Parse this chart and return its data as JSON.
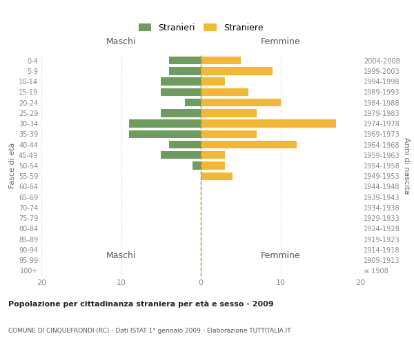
{
  "age_groups": [
    "100+",
    "95-99",
    "90-94",
    "85-89",
    "80-84",
    "75-79",
    "70-74",
    "65-69",
    "60-64",
    "55-59",
    "50-54",
    "45-49",
    "40-44",
    "35-39",
    "30-34",
    "25-29",
    "20-24",
    "15-19",
    "10-14",
    "5-9",
    "0-4"
  ],
  "birth_years": [
    "≤ 1908",
    "1909-1913",
    "1914-1918",
    "1919-1923",
    "1924-1928",
    "1929-1933",
    "1934-1938",
    "1939-1943",
    "1944-1948",
    "1949-1953",
    "1954-1958",
    "1959-1963",
    "1964-1968",
    "1969-1973",
    "1974-1978",
    "1979-1983",
    "1984-1988",
    "1989-1993",
    "1994-1998",
    "1999-2003",
    "2004-2008"
  ],
  "maschi": [
    0,
    0,
    0,
    0,
    0,
    0,
    0,
    0,
    0,
    0,
    1,
    5,
    4,
    9,
    9,
    5,
    2,
    5,
    5,
    4,
    4
  ],
  "femmine": [
    0,
    0,
    0,
    0,
    0,
    0,
    0,
    0,
    0,
    4,
    3,
    3,
    12,
    7,
    17,
    7,
    10,
    6,
    3,
    9,
    5
  ],
  "maschi_color": "#6e9b5e",
  "femmine_color": "#f5b731",
  "background_color": "#ffffff",
  "grid_color": "#cccccc",
  "title1": "Popolazione per cittadinanza straniera per età e sesso - 2009",
  "title2": "COMUNE DI CINQUEFRONDI (RC) - Dati ISTAT 1° gennaio 2009 - Elaborazione TUTTITALIA.IT",
  "xlabel_left": "Maschi",
  "xlabel_right": "Femmine",
  "ylabel_left": "Fasce di età",
  "ylabel_right": "Anni di nascita",
  "legend_maschi": "Stranieri",
  "legend_femmine": "Straniere",
  "xlim": 20
}
